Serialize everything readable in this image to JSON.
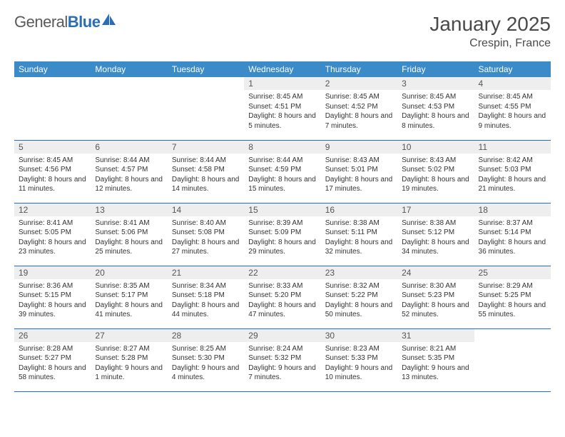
{
  "logo": {
    "general": "General",
    "blue": "Blue"
  },
  "title": "January 2025",
  "location": "Crespin, France",
  "colors": {
    "header_bg": "#3b8bc9",
    "border": "#2a6fb5",
    "daynum_bg": "#eeeeee",
    "text": "#333333"
  },
  "fonts": {
    "title_size": 28,
    "location_size": 16,
    "header_size": 12,
    "cell_size": 10
  },
  "weekdays": [
    "Sunday",
    "Monday",
    "Tuesday",
    "Wednesday",
    "Thursday",
    "Friday",
    "Saturday"
  ],
  "weeks": [
    [
      null,
      null,
      null,
      {
        "n": "1",
        "sr": "8:45 AM",
        "ss": "4:51 PM",
        "dl": "8 hours and 5 minutes."
      },
      {
        "n": "2",
        "sr": "8:45 AM",
        "ss": "4:52 PM",
        "dl": "8 hours and 7 minutes."
      },
      {
        "n": "3",
        "sr": "8:45 AM",
        "ss": "4:53 PM",
        "dl": "8 hours and 8 minutes."
      },
      {
        "n": "4",
        "sr": "8:45 AM",
        "ss": "4:55 PM",
        "dl": "8 hours and 9 minutes."
      }
    ],
    [
      {
        "n": "5",
        "sr": "8:45 AM",
        "ss": "4:56 PM",
        "dl": "8 hours and 11 minutes."
      },
      {
        "n": "6",
        "sr": "8:44 AM",
        "ss": "4:57 PM",
        "dl": "8 hours and 12 minutes."
      },
      {
        "n": "7",
        "sr": "8:44 AM",
        "ss": "4:58 PM",
        "dl": "8 hours and 14 minutes."
      },
      {
        "n": "8",
        "sr": "8:44 AM",
        "ss": "4:59 PM",
        "dl": "8 hours and 15 minutes."
      },
      {
        "n": "9",
        "sr": "8:43 AM",
        "ss": "5:01 PM",
        "dl": "8 hours and 17 minutes."
      },
      {
        "n": "10",
        "sr": "8:43 AM",
        "ss": "5:02 PM",
        "dl": "8 hours and 19 minutes."
      },
      {
        "n": "11",
        "sr": "8:42 AM",
        "ss": "5:03 PM",
        "dl": "8 hours and 21 minutes."
      }
    ],
    [
      {
        "n": "12",
        "sr": "8:41 AM",
        "ss": "5:05 PM",
        "dl": "8 hours and 23 minutes."
      },
      {
        "n": "13",
        "sr": "8:41 AM",
        "ss": "5:06 PM",
        "dl": "8 hours and 25 minutes."
      },
      {
        "n": "14",
        "sr": "8:40 AM",
        "ss": "5:08 PM",
        "dl": "8 hours and 27 minutes."
      },
      {
        "n": "15",
        "sr": "8:39 AM",
        "ss": "5:09 PM",
        "dl": "8 hours and 29 minutes."
      },
      {
        "n": "16",
        "sr": "8:38 AM",
        "ss": "5:11 PM",
        "dl": "8 hours and 32 minutes."
      },
      {
        "n": "17",
        "sr": "8:38 AM",
        "ss": "5:12 PM",
        "dl": "8 hours and 34 minutes."
      },
      {
        "n": "18",
        "sr": "8:37 AM",
        "ss": "5:14 PM",
        "dl": "8 hours and 36 minutes."
      }
    ],
    [
      {
        "n": "19",
        "sr": "8:36 AM",
        "ss": "5:15 PM",
        "dl": "8 hours and 39 minutes."
      },
      {
        "n": "20",
        "sr": "8:35 AM",
        "ss": "5:17 PM",
        "dl": "8 hours and 41 minutes."
      },
      {
        "n": "21",
        "sr": "8:34 AM",
        "ss": "5:18 PM",
        "dl": "8 hours and 44 minutes."
      },
      {
        "n": "22",
        "sr": "8:33 AM",
        "ss": "5:20 PM",
        "dl": "8 hours and 47 minutes."
      },
      {
        "n": "23",
        "sr": "8:32 AM",
        "ss": "5:22 PM",
        "dl": "8 hours and 50 minutes."
      },
      {
        "n": "24",
        "sr": "8:30 AM",
        "ss": "5:23 PM",
        "dl": "8 hours and 52 minutes."
      },
      {
        "n": "25",
        "sr": "8:29 AM",
        "ss": "5:25 PM",
        "dl": "8 hours and 55 minutes."
      }
    ],
    [
      {
        "n": "26",
        "sr": "8:28 AM",
        "ss": "5:27 PM",
        "dl": "8 hours and 58 minutes."
      },
      {
        "n": "27",
        "sr": "8:27 AM",
        "ss": "5:28 PM",
        "dl": "9 hours and 1 minute."
      },
      {
        "n": "28",
        "sr": "8:25 AM",
        "ss": "5:30 PM",
        "dl": "9 hours and 4 minutes."
      },
      {
        "n": "29",
        "sr": "8:24 AM",
        "ss": "5:32 PM",
        "dl": "9 hours and 7 minutes."
      },
      {
        "n": "30",
        "sr": "8:23 AM",
        "ss": "5:33 PM",
        "dl": "9 hours and 10 minutes."
      },
      {
        "n": "31",
        "sr": "8:21 AM",
        "ss": "5:35 PM",
        "dl": "9 hours and 13 minutes."
      },
      null
    ]
  ],
  "labels": {
    "sunrise": "Sunrise:",
    "sunset": "Sunset:",
    "daylight": "Daylight:"
  }
}
